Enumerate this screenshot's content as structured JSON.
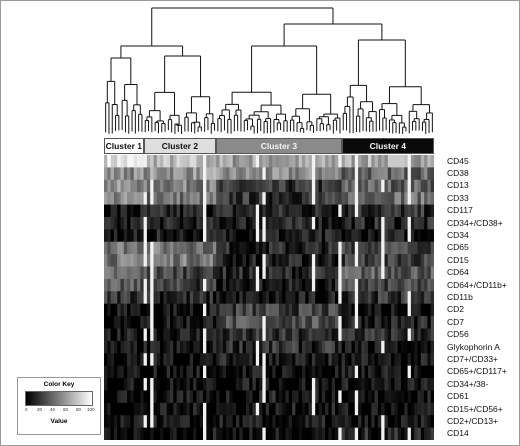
{
  "chart_data": {
    "type": "heatmap",
    "column_clusters": [
      {
        "name": "Cluster 1",
        "fill": "#ffffff",
        "text_color": "#111111"
      },
      {
        "name": "Cluster 2",
        "fill": "#dedede",
        "text_color": "#111111"
      },
      {
        "name": "Cluster 3",
        "fill": "#8a8a8a",
        "text_color": "#f2f2f2"
      },
      {
        "name": "Cluster 4",
        "fill": "#0a0a0a",
        "text_color": "#f2f2f2"
      }
    ],
    "cluster_column_counts": [
      12,
      22,
      38,
      28
    ],
    "rows": [
      "CD45",
      "CD38",
      "CD13",
      "CD33",
      "CD117",
      "CD34+/CD38+",
      "CD34",
      "CD65",
      "CD15",
      "CD64",
      "CD64+/CD11b+",
      "CD11b",
      "CD2",
      "CD7",
      "CD56",
      "Glykophorin A",
      "CD7+/CD33+",
      "CD65+/CD117+",
      "CD34+/38-",
      "CD61",
      "CD15+/CD56+",
      "CD2+/CD13+",
      "CD14"
    ],
    "row_cluster_means": [
      [
        88,
        72,
        62,
        66
      ],
      [
        55,
        58,
        52,
        40
      ],
      [
        55,
        50,
        18,
        38
      ],
      [
        52,
        45,
        20,
        44
      ],
      [
        8,
        12,
        14,
        18
      ],
      [
        10,
        10,
        12,
        14
      ],
      [
        6,
        8,
        10,
        8
      ],
      [
        48,
        46,
        14,
        28
      ],
      [
        46,
        48,
        10,
        24
      ],
      [
        40,
        28,
        14,
        36
      ],
      [
        32,
        22,
        10,
        26
      ],
      [
        22,
        14,
        8,
        20
      ],
      [
        6,
        6,
        24,
        8
      ],
      [
        8,
        10,
        30,
        12
      ],
      [
        6,
        10,
        16,
        18
      ],
      [
        4,
        6,
        18,
        6
      ],
      [
        4,
        6,
        10,
        6
      ],
      [
        3,
        6,
        6,
        5
      ],
      [
        3,
        4,
        6,
        5
      ],
      [
        4,
        4,
        8,
        5
      ],
      [
        3,
        4,
        6,
        5
      ],
      [
        3,
        4,
        6,
        4
      ],
      [
        2,
        4,
        4,
        12
      ]
    ],
    "color_scale": {
      "min": 0,
      "max": 100,
      "low_color": "#000000",
      "high_color": "#ffffff"
    },
    "dendrogram": "columns"
  },
  "color_key": {
    "title": "Color Key",
    "ticks": [
      "0",
      "20",
      "40",
      "60",
      "80",
      "100"
    ],
    "label": "Value"
  }
}
